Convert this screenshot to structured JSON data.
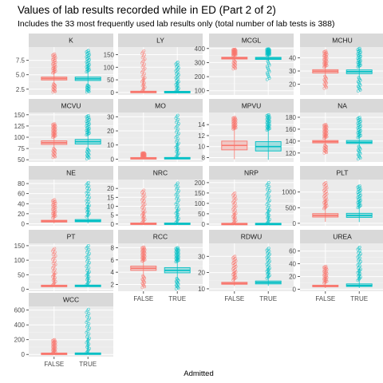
{
  "chart_data": {
    "type": "boxplot",
    "title": "Values of lab results recorded while in ED (Part 2 of 2)",
    "subtitle": "Includes the 33 most frequently used lab results only (total number of lab tests is 388)",
    "xlabel": "Admitted",
    "categories": [
      "FALSE",
      "TRUE"
    ],
    "series_colors": {
      "FALSE": "#F8766D",
      "TRUE": "#00BFC4"
    },
    "panels": [
      {
        "name": "K",
        "ylim": [
          1.5,
          9.8
        ],
        "yticks": [
          2.5,
          5.0,
          7.5
        ],
        "ytick_labels": [
          "2.5",
          "5.0",
          "7.5"
        ],
        "boxes": [
          {
            "group": "FALSE",
            "min": 3.4,
            "q1": 4.1,
            "median": 4.35,
            "q3": 4.6,
            "max": 5.3,
            "outlier_range": [
              2.0,
              8.6
            ]
          },
          {
            "group": "TRUE",
            "min": 3.2,
            "q1": 4.0,
            "median": 4.3,
            "q3": 4.6,
            "max": 5.5,
            "outlier_range": [
              2.0,
              9.2
            ]
          }
        ]
      },
      {
        "name": "LY",
        "ylim": [
          -10,
          180
        ],
        "yticks": [
          0,
          50,
          100,
          150
        ],
        "ytick_labels": [
          "0",
          "50",
          "100",
          "150"
        ],
        "boxes": [
          {
            "group": "FALSE",
            "min": 0.2,
            "q1": 1.0,
            "median": 1.8,
            "q3": 2.6,
            "max": 5,
            "outlier_range": [
              6,
              165
            ]
          },
          {
            "group": "TRUE",
            "min": 0.2,
            "q1": 0.7,
            "median": 1.2,
            "q3": 1.9,
            "max": 4,
            "outlier_range": [
              5,
              120
            ]
          }
        ]
      },
      {
        "name": "MCGL",
        "ylim": [
          70,
          410
        ],
        "yticks": [
          100,
          200,
          300,
          400
        ],
        "ytick_labels": [
          "100",
          "200",
          "300",
          "400"
        ],
        "boxes": [
          {
            "group": "FALSE",
            "min": 315,
            "q1": 325,
            "median": 332,
            "q3": 338,
            "max": 350,
            "outlier_range": [
              255,
              395
            ]
          },
          {
            "group": "TRUE",
            "min": 310,
            "q1": 322,
            "median": 330,
            "q3": 337,
            "max": 352,
            "outlier_range": [
              180,
              398
            ]
          }
        ]
      },
      {
        "name": "MCHU",
        "ylim": [
          12,
          48
        ],
        "yticks": [
          20,
          30,
          40
        ],
        "ytick_labels": [
          "20",
          "30",
          "40"
        ],
        "boxes": [
          {
            "group": "FALSE",
            "min": 26,
            "q1": 28.5,
            "median": 29.8,
            "q3": 31,
            "max": 33,
            "outlier_range": [
              17,
              45
            ]
          },
          {
            "group": "TRUE",
            "min": 25,
            "q1": 28,
            "median": 29.5,
            "q3": 30.8,
            "max": 33,
            "outlier_range": [
              15,
              47
            ]
          }
        ]
      },
      {
        "name": "MCVU",
        "ylim": [
          45,
          155
        ],
        "yticks": [
          50,
          75,
          100,
          125,
          150
        ],
        "ytick_labels": [
          "50",
          "75",
          "100",
          "125",
          "150"
        ],
        "boxes": [
          {
            "group": "FALSE",
            "min": 75,
            "q1": 84,
            "median": 88,
            "q3": 92,
            "max": 100,
            "outlier_range": [
              55,
              130
            ]
          },
          {
            "group": "TRUE",
            "min": 74,
            "q1": 85,
            "median": 90,
            "q3": 95,
            "max": 105,
            "outlier_range": [
              52,
              148
            ]
          }
        ]
      },
      {
        "name": "MO",
        "ylim": [
          -2,
          33
        ],
        "yticks": [
          0,
          10,
          20,
          30
        ],
        "ytick_labels": [
          "0",
          "10",
          "20",
          "30"
        ],
        "boxes": [
          {
            "group": "FALSE",
            "min": 0.1,
            "q1": 0.4,
            "median": 0.6,
            "q3": 0.8,
            "max": 1.2,
            "outlier_range": [
              1.3,
              4.5
            ]
          },
          {
            "group": "TRUE",
            "min": 0.1,
            "q1": 0.4,
            "median": 0.6,
            "q3": 0.9,
            "max": 1.4,
            "outlier_range": [
              1.5,
              31
            ]
          }
        ]
      },
      {
        "name": "MPVU",
        "ylim": [
          7.2,
          16.2
        ],
        "yticks": [
          8,
          10,
          12,
          14
        ],
        "ytick_labels": [
          "8",
          "10",
          "12",
          "14"
        ],
        "boxes": [
          {
            "group": "FALSE",
            "min": 7.7,
            "q1": 9.4,
            "median": 10.2,
            "q3": 11.0,
            "max": 13.2,
            "outlier_range": [
              13.4,
              15.3
            ]
          },
          {
            "group": "TRUE",
            "min": 7.6,
            "q1": 9.2,
            "median": 10.0,
            "q3": 10.9,
            "max": 13.0,
            "outlier_range": [
              13.2,
              15.8
            ]
          }
        ]
      },
      {
        "name": "NA",
        "ylim": [
          105,
          188
        ],
        "yticks": [
          120,
          140,
          160,
          180
        ],
        "ytick_labels": [
          "120",
          "140",
          "160",
          "180"
        ],
        "boxes": [
          {
            "group": "FALSE",
            "min": 133,
            "q1": 137,
            "median": 139,
            "q3": 141,
            "max": 145,
            "outlier_range": [
              120,
              168
            ]
          },
          {
            "group": "TRUE",
            "min": 131,
            "q1": 136,
            "median": 138,
            "q3": 141,
            "max": 146,
            "outlier_range": [
              110,
              180
            ]
          }
        ]
      },
      {
        "name": "NE",
        "ylim": [
          -4,
          88
        ],
        "yticks": [
          0,
          20,
          40,
          60,
          80
        ],
        "ytick_labels": [
          "0",
          "20",
          "40",
          "60",
          "80"
        ],
        "boxes": [
          {
            "group": "FALSE",
            "min": 1,
            "q1": 3.5,
            "median": 5,
            "q3": 7,
            "max": 12,
            "outlier_range": [
              13,
              48
            ]
          },
          {
            "group": "TRUE",
            "min": 1,
            "q1": 4,
            "median": 6,
            "q3": 8.5,
            "max": 14,
            "outlier_range": [
              15,
              82
            ]
          }
        ]
      },
      {
        "name": "NRC",
        "ylim": [
          -1,
          25
        ],
        "yticks": [
          0,
          5,
          10,
          15,
          20
        ],
        "ytick_labels": [
          "0",
          "5",
          "10",
          "15",
          "20"
        ],
        "boxes": [
          {
            "group": "FALSE",
            "min": 0,
            "q1": 0,
            "median": 0.1,
            "q3": 0.3,
            "max": 0.8,
            "outlier_range": [
              1,
              19
            ]
          },
          {
            "group": "TRUE",
            "min": 0,
            "q1": 0,
            "median": 0.1,
            "q3": 0.3,
            "max": 0.9,
            "outlier_range": [
              1,
              23
            ]
          }
        ]
      },
      {
        "name": "NRP",
        "ylim": [
          -8,
          215
        ],
        "yticks": [
          0,
          50,
          100,
          150,
          200
        ],
        "ytick_labels": [
          "0",
          "50",
          "100",
          "150",
          "200"
        ],
        "boxes": [
          {
            "group": "FALSE",
            "min": 0,
            "q1": 0,
            "median": 0.3,
            "q3": 1,
            "max": 3,
            "outlier_range": [
              4,
              150
            ]
          },
          {
            "group": "TRUE",
            "min": 0,
            "q1": 0,
            "median": 0.3,
            "q3": 1,
            "max": 3,
            "outlier_range": [
              4,
              200
            ]
          }
        ]
      },
      {
        "name": "PLT",
        "ylim": [
          -80,
          1400
        ],
        "yticks": [
          0,
          500,
          1000
        ],
        "ytick_labels": [
          "0",
          "500",
          "1000"
        ],
        "boxes": [
          {
            "group": "FALSE",
            "min": 50,
            "q1": 200,
            "median": 250,
            "q3": 310,
            "max": 470,
            "outlier_range": [
              480,
              1300
            ]
          },
          {
            "group": "TRUE",
            "min": 40,
            "q1": 190,
            "median": 250,
            "q3": 320,
            "max": 500,
            "outlier_range": [
              510,
              1200
            ]
          }
        ]
      },
      {
        "name": "PT",
        "ylim": [
          -7,
          158
        ],
        "yticks": [
          0,
          50,
          100,
          150
        ],
        "ytick_labels": [
          "0",
          "50",
          "100",
          "150"
        ],
        "boxes": [
          {
            "group": "FALSE",
            "min": 9,
            "q1": 10.5,
            "median": 11,
            "q3": 12,
            "max": 14,
            "outlier_range": [
              15,
              140
            ]
          },
          {
            "group": "TRUE",
            "min": 9,
            "q1": 10.5,
            "median": 11.5,
            "q3": 12.5,
            "max": 15,
            "outlier_range": [
              16,
              150
            ]
          }
        ]
      },
      {
        "name": "RCC",
        "ylim": [
          0.9,
          8.7
        ],
        "yticks": [
          2,
          4,
          6,
          8
        ],
        "ytick_labels": [
          "2",
          "4",
          "6",
          "8"
        ],
        "boxes": [
          {
            "group": "FALSE",
            "min": 3.4,
            "q1": 4.3,
            "median": 4.65,
            "q3": 5.0,
            "max": 5.8,
            "outlier_range": [
              1.5,
              8.1
            ]
          },
          {
            "group": "TRUE",
            "min": 3.0,
            "q1": 3.9,
            "median": 4.3,
            "q3": 4.75,
            "max": 5.7,
            "outlier_range": [
              1.3,
              8.0
            ]
          }
        ]
      },
      {
        "name": "RDWU",
        "ylim": [
          8.5,
          38
        ],
        "yticks": [
          10,
          20,
          30
        ],
        "ytick_labels": [
          "10",
          "20",
          "30"
        ],
        "boxes": [
          {
            "group": "FALSE",
            "min": 11.8,
            "q1": 12.8,
            "median": 13.3,
            "q3": 14.0,
            "max": 15.5,
            "outlier_range": [
              15.8,
              30
            ]
          },
          {
            "group": "TRUE",
            "min": 11.8,
            "q1": 13.0,
            "median": 13.8,
            "q3": 14.8,
            "max": 16.5,
            "outlier_range": [
              16.8,
              35
            ]
          }
        ]
      },
      {
        "name": "UREA",
        "ylim": [
          -3,
          72
        ],
        "yticks": [
          0,
          20,
          40,
          60
        ],
        "ytick_labels": [
          "0",
          "20",
          "40",
          "60"
        ],
        "boxes": [
          {
            "group": "FALSE",
            "min": 2,
            "q1": 4,
            "median": 5,
            "q3": 6.5,
            "max": 10,
            "outlier_range": [
              11,
              36
            ]
          },
          {
            "group": "TRUE",
            "min": 2,
            "q1": 4.5,
            "median": 6,
            "q3": 8.5,
            "max": 14,
            "outlier_range": [
              15,
              66
            ]
          }
        ]
      },
      {
        "name": "WCC",
        "ylim": [
          -30,
          650
        ],
        "yticks": [
          0,
          200,
          400,
          600
        ],
        "ytick_labels": [
          "0",
          "200",
          "400",
          "600"
        ],
        "boxes": [
          {
            "group": "FALSE",
            "min": 3,
            "q1": 6.5,
            "median": 8.5,
            "q3": 11,
            "max": 18,
            "outlier_range": [
              20,
              200
            ]
          },
          {
            "group": "TRUE",
            "min": 3,
            "q1": 7,
            "median": 9.5,
            "q3": 13,
            "max": 22,
            "outlier_range": [
              25,
              610
            ]
          }
        ]
      }
    ]
  }
}
